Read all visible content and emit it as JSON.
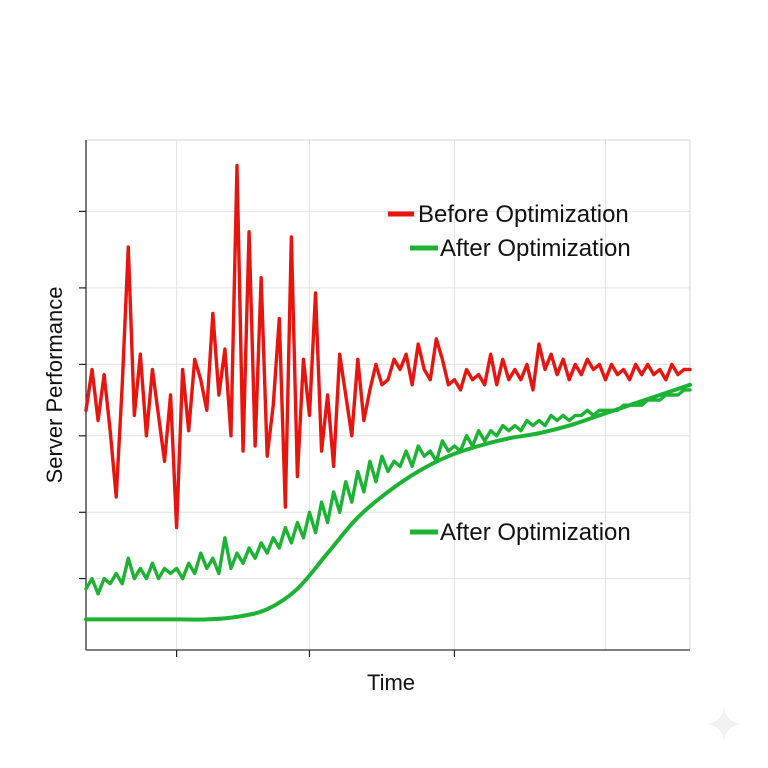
{
  "chart_data": {
    "type": "line",
    "title": "",
    "xlabel": "Time",
    "ylabel": "Server Performance",
    "xlim": [
      0,
      100
    ],
    "ylim": [
      0,
      100
    ],
    "grid": true,
    "legend_placement": "top-right",
    "series": [
      {
        "name": "Before Optimization",
        "color": "#e8150f",
        "style": "jagged",
        "x": [
          0,
          1,
          2,
          3,
          4,
          5,
          6,
          7,
          8,
          9,
          10,
          11,
          12,
          13,
          14,
          15,
          16,
          17,
          18,
          19,
          20,
          21,
          22,
          23,
          24,
          25,
          26,
          27,
          28,
          29,
          30,
          31,
          32,
          33,
          34,
          35,
          36,
          37,
          38,
          39,
          40,
          41,
          42,
          43,
          44,
          45,
          46,
          47,
          48,
          49,
          50,
          51,
          52,
          53,
          54,
          55,
          56,
          57,
          58,
          59,
          60,
          61,
          62,
          63,
          64,
          65,
          66,
          67,
          68,
          69,
          70,
          71,
          72,
          73,
          74,
          75,
          76,
          77,
          78,
          79,
          80,
          81,
          82,
          83,
          84,
          85,
          86,
          87,
          88,
          89,
          90,
          91,
          92,
          93,
          94,
          95,
          96,
          97,
          98,
          99,
          100
        ],
        "values": [
          47,
          55,
          45,
          54,
          43,
          30,
          52,
          79,
          46,
          58,
          42,
          55,
          46,
          37,
          50,
          24,
          55,
          43,
          57,
          53,
          47,
          66,
          50,
          59,
          42,
          95,
          39,
          82,
          40,
          73,
          38,
          48,
          65,
          28,
          81,
          34,
          57,
          46,
          70,
          39,
          50,
          36,
          58,
          50,
          42,
          57,
          45,
          51,
          56,
          52,
          53,
          57,
          55,
          58,
          52,
          60,
          55,
          53,
          61,
          57,
          52,
          53,
          51,
          55,
          53,
          54,
          52,
          58,
          52,
          57,
          53,
          55,
          53,
          56,
          51,
          60,
          55,
          58,
          54,
          57,
          53,
          56,
          54,
          57,
          55,
          56,
          53,
          56,
          54,
          55,
          53,
          56,
          54,
          56,
          54,
          55,
          53,
          56,
          54,
          55,
          55
        ]
      },
      {
        "name": "After Optimization",
        "color": "#1cb334",
        "style": "noisy",
        "x": [
          0,
          1,
          2,
          3,
          4,
          5,
          6,
          7,
          8,
          9,
          10,
          11,
          12,
          13,
          14,
          15,
          16,
          17,
          18,
          19,
          20,
          21,
          22,
          23,
          24,
          25,
          26,
          27,
          28,
          29,
          30,
          31,
          32,
          33,
          34,
          35,
          36,
          37,
          38,
          39,
          40,
          41,
          42,
          43,
          44,
          45,
          46,
          47,
          48,
          49,
          50,
          51,
          52,
          53,
          54,
          55,
          56,
          57,
          58,
          59,
          60,
          61,
          62,
          63,
          64,
          65,
          66,
          67,
          68,
          69,
          70,
          71,
          72,
          73,
          74,
          75,
          76,
          77,
          78,
          79,
          80,
          81,
          82,
          83,
          84,
          85,
          86,
          87,
          88,
          89,
          90,
          91,
          92,
          93,
          94,
          95,
          96,
          97,
          98,
          99,
          100
        ],
        "values": [
          12,
          14,
          11,
          14,
          13,
          15,
          13,
          18,
          14,
          16,
          14,
          17,
          14,
          16,
          15,
          16,
          14,
          17,
          15,
          19,
          16,
          18,
          15,
          22,
          16,
          19,
          17,
          20,
          18,
          21,
          19,
          22,
          20,
          24,
          21,
          25,
          22,
          27,
          23,
          29,
          25,
          31,
          27,
          33,
          29,
          35,
          31,
          37,
          33,
          38,
          35,
          37,
          36,
          39,
          36,
          40,
          38,
          39,
          37,
          41,
          39,
          40,
          39,
          42,
          40,
          43,
          41,
          43,
          42,
          44,
          43,
          44,
          43,
          45,
          44,
          45,
          44,
          46,
          45,
          46,
          45,
          46,
          46,
          47,
          46,
          47,
          47,
          47,
          47,
          48,
          48,
          48,
          48,
          49,
          49,
          49,
          50,
          50,
          50,
          51,
          51
        ]
      },
      {
        "name": "After Optimization",
        "color": "#1cb334",
        "style": "smooth",
        "x": [
          0,
          5,
          10,
          15,
          20,
          25,
          30,
          35,
          40,
          45,
          50,
          55,
          60,
          65,
          70,
          75,
          80,
          85,
          90,
          95,
          100
        ],
        "values": [
          6,
          6,
          6,
          6,
          6,
          6.5,
          8,
          12,
          19,
          26,
          31,
          35,
          38,
          40,
          41.5,
          42.5,
          44,
          46,
          48,
          50,
          52
        ]
      }
    ],
    "legend": [
      {
        "label": "Before Optimization",
        "color": "#e8150f"
      },
      {
        "label": "After Optimization",
        "color": "#1cb334"
      }
    ],
    "annotation": {
      "label": "After Optimization",
      "color": "#1cb334"
    }
  }
}
